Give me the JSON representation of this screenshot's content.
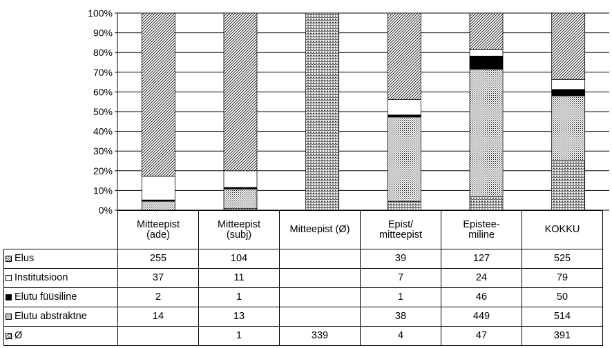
{
  "chart_data": {
    "type": "bar",
    "stacked": true,
    "normalized_percent": true,
    "y_ticks": [
      "0%",
      "10%",
      "20%",
      "30%",
      "40%",
      "50%",
      "60%",
      "70%",
      "80%",
      "90%",
      "100%"
    ],
    "ylim": [
      0,
      100
    ],
    "grid": true,
    "categories": [
      {
        "name": "Mitteepist (ade)",
        "lines": [
          "Mitteepist",
          "(ade)"
        ]
      },
      {
        "name": "Mitteepist (subj)",
        "lines": [
          "Mitteepist",
          "(subj)"
        ]
      },
      {
        "name": "Mitteepist (Ø)",
        "lines": [
          "Mitteepist (Ø)"
        ]
      },
      {
        "name": "Epist/ mitteepist",
        "lines": [
          "Epist/",
          "mitteepist"
        ]
      },
      {
        "name": "Epistee-miline",
        "lines": [
          "Epistee-",
          "miline"
        ]
      },
      {
        "name": "KOKKU",
        "lines": [
          "KOKKU"
        ]
      }
    ],
    "series": [
      {
        "name": "Elus",
        "pattern": "diag",
        "values": [
          "255",
          "104",
          "",
          "39",
          "127",
          "525"
        ]
      },
      {
        "name": "Institutsioon",
        "pattern": "white",
        "values": [
          "37",
          "11",
          "",
          "7",
          "24",
          "79"
        ]
      },
      {
        "name": "Elutu füüsiline",
        "pattern": "black",
        "values": [
          "2",
          "1",
          "",
          "1",
          "46",
          "50"
        ]
      },
      {
        "name": "Elutu abstraktne",
        "pattern": "dots",
        "values": [
          "14",
          "13",
          "",
          "38",
          "449",
          "514"
        ]
      },
      {
        "name": "Ø",
        "pattern": "weave",
        "values": [
          "",
          "1",
          "339",
          "4",
          "47",
          "391"
        ]
      }
    ]
  }
}
